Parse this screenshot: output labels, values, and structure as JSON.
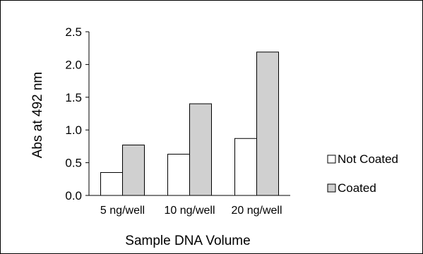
{
  "chart_data": {
    "type": "bar",
    "title": "",
    "xlabel": "Sample DNA Volume",
    "ylabel": "Abs at 492 nm",
    "categories": [
      "5 ng/well",
      "10 ng/well",
      "20 ng/well"
    ],
    "ylim": [
      0,
      2.5
    ],
    "yticks": [
      "0.0",
      "0.5",
      "1.0",
      "1.5",
      "2.0",
      "2.5"
    ],
    "grid": false,
    "legend_position": "right",
    "series": [
      {
        "name": "Not Coated",
        "values": [
          0.35,
          0.63,
          0.87
        ],
        "color": "#ffffff"
      },
      {
        "name": "Coated",
        "values": [
          0.77,
          1.4,
          2.19
        ],
        "color": "#d0d0d0"
      }
    ]
  }
}
